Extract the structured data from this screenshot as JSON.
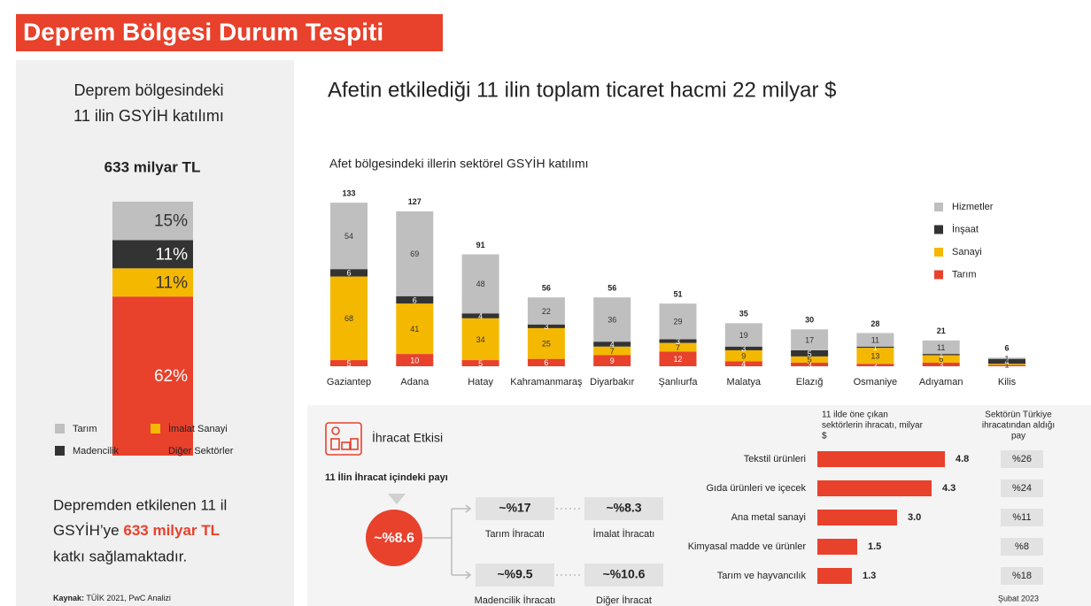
{
  "header": {
    "title": "Deprem Bölgesi Durum Tespiti"
  },
  "left_panel": {
    "title_lines": [
      "Deprem bölgesindeki",
      "11 ilin GSYİH katılımı"
    ],
    "body_lines": [
      "Depremden etkilenen 11 il",
      "GSYİH’ye",
      "633 milyar TL",
      "katkı sağlamaktadır."
    ],
    "source_label": "Kaynak:",
    "source": "TÜİK 2021, PwC Analizi"
  },
  "headline": "Afetin etkilediği 11 ilin toplam ticaret hacmi 22 milyar $",
  "chart_data": [
    {
      "type": "stacked_bar",
      "title": "633 milyar TL",
      "series": [
        {
          "name": "Tarım",
          "color": "#bfbfbf",
          "values": [
            15
          ],
          "value_labels": [
            "15%"
          ]
        },
        {
          "name": "Madencilik",
          "color": "#333333",
          "values": [
            11
          ],
          "value_labels": [
            "11%"
          ]
        },
        {
          "name": "İmalat Sanayi",
          "color": "#f5b800",
          "values": [
            11
          ],
          "value_labels": [
            "11%"
          ]
        },
        {
          "name": "Diğer Sektörler",
          "color": "#e8412c",
          "values": [
            62
          ],
          "value_labels": [
            "62%"
          ]
        }
      ]
    },
    {
      "type": "stacked_bar",
      "title": "Afet bölgesindeki illerin sektörel GSYİH katılımı",
      "categories": [
        "Gaziantep",
        "Adana",
        "Hatay",
        "Kahramanmaraş",
        "Diyarbakır",
        "Şanlıurfa",
        "Malatya",
        "Elazığ",
        "Osmaniye",
        "Adıyaman",
        "Kilis"
      ],
      "totals": [
        133,
        127,
        91,
        56,
        56,
        51,
        35,
        30,
        28,
        21,
        6
      ],
      "series": [
        {
          "name": "Tarım",
          "color": "#e8412c",
          "values": [
            5,
            10,
            5,
            6,
            9,
            12,
            4,
            3,
            2,
            3,
            1
          ]
        },
        {
          "name": "Sanayi",
          "color": "#f5b800",
          "values": [
            68,
            41,
            34,
            25,
            7,
            7,
            9,
            5,
            13,
            6,
            1
          ]
        },
        {
          "name": "İnşaat",
          "color": "#333333",
          "values": [
            6,
            6,
            4,
            3,
            4,
            3,
            3,
            5,
            1,
            1,
            4
          ]
        },
        {
          "name": "Hizmetler",
          "color": "#bfbfbf",
          "values": [
            54,
            69,
            48,
            22,
            36,
            29,
            19,
            17,
            11,
            11,
            1
          ]
        }
      ]
    },
    {
      "type": "hbar",
      "title_lines": [
        "11 ilde öne çıkan",
        "sektörlerin ihracatı, milyar",
        "$"
      ],
      "categories": [
        "Tekstil ürünleri",
        "Gıda ürünleri ve içecek",
        "Ana metal sanayi",
        "Kimyasal madde ve ürünler",
        "Tarım ve hayvancılık"
      ],
      "values": [
        4.8,
        4.3,
        3.0,
        1.5,
        1.3
      ],
      "value_labels": [
        "4.8",
        "4.3",
        "3.0",
        "1.5",
        "1.3"
      ],
      "color": "#e8412c"
    }
  ],
  "export_shares": {
    "header_lines": [
      "Sektörün Türkiye",
      "ihracatından aldığı",
      "pay"
    ],
    "values": [
      "%26",
      "%24",
      "%11",
      "%8",
      "%18"
    ],
    "note": "Şubat 2023"
  },
  "export_effect": {
    "title": "İhracat Etkisi",
    "subtitle": "11 İlin İhracat içindeki payı",
    "total": "~%8.6",
    "items": [
      {
        "value": "~%17",
        "label": "Tarım İhracatı"
      },
      {
        "value": "~%8.3",
        "label": "İmalat İhracatı"
      },
      {
        "value": "~%9.5",
        "label": "Madencilik İhracatı"
      },
      {
        "value": "~%10.6",
        "label": "Diğer İhracat"
      }
    ]
  }
}
